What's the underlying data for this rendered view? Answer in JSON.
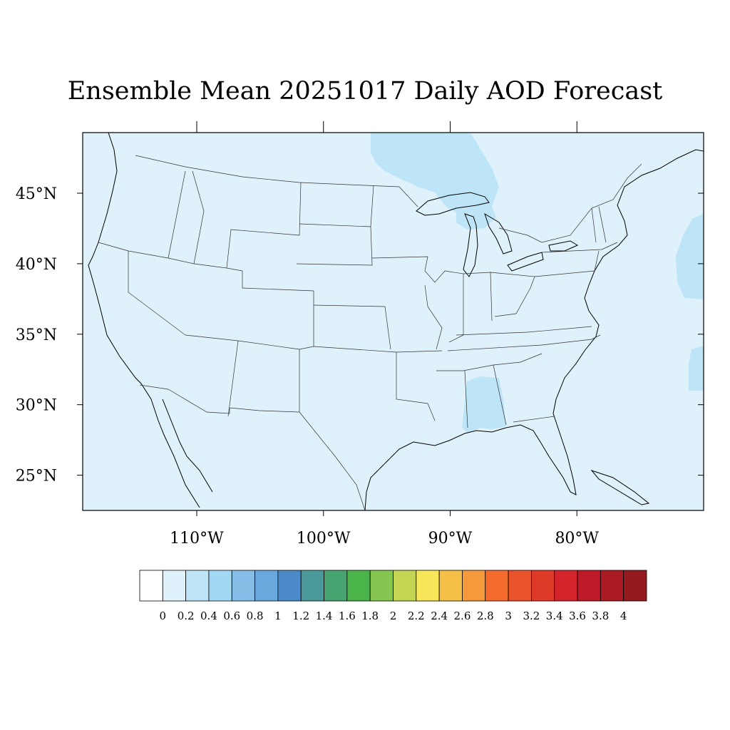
{
  "title": "Ensemble Mean 20251017 Daily AOD Forecast",
  "map": {
    "region": "Continental United States",
    "projection": "cylindrical equidistant",
    "lon_range": [
      -119,
      -70
    ],
    "lat_range": [
      22.5,
      49.3
    ],
    "background_color": "#dff1fb",
    "overlays": [
      "coastlines",
      "state boundaries",
      "country borders"
    ],
    "lat_ticks": [
      {
        "value": 45,
        "label": "45°N"
      },
      {
        "value": 40,
        "label": "40°N"
      },
      {
        "value": 35,
        "label": "35°N"
      },
      {
        "value": 30,
        "label": "30°N"
      },
      {
        "value": 25,
        "label": "25°N"
      }
    ],
    "lon_ticks": [
      {
        "value": -110,
        "label": "110°W"
      },
      {
        "value": -100,
        "label": "100°W"
      },
      {
        "value": -90,
        "label": "90°W"
      },
      {
        "value": -80,
        "label": "80°W"
      }
    ],
    "field_regions": [
      {
        "name": "upper-great-lakes",
        "level": "0.2-0.4"
      },
      {
        "name": "alabama-gulf-coast",
        "level": "0.2-0.4"
      },
      {
        "name": "atlantic-offshore-north",
        "level": "0.2-0.4"
      },
      {
        "name": "atlantic-offshore-south",
        "level": "0.2-0.4"
      }
    ]
  },
  "colorbar": {
    "levels": [
      "0",
      "0.2",
      "0.4",
      "0.6",
      "0.8",
      "1",
      "1.2",
      "1.4",
      "1.6",
      "1.8",
      "2",
      "2.2",
      "2.4",
      "2.6",
      "2.8",
      "3",
      "3.2",
      "3.4",
      "3.6",
      "3.8",
      "4"
    ],
    "colors": [
      "#ffffff",
      "#dff1fb",
      "#bde5f7",
      "#a1d8f3",
      "#84bde6",
      "#69a8dc",
      "#4a8ac8",
      "#4b9a9b",
      "#47a471",
      "#4ab34a",
      "#86c54f",
      "#c3d553",
      "#f7e55a",
      "#f6bf47",
      "#f59a3c",
      "#f46b2d",
      "#e9532c",
      "#df3a28",
      "#d4242b",
      "#bf1a27",
      "#aa1b24",
      "#941a1f"
    ]
  }
}
